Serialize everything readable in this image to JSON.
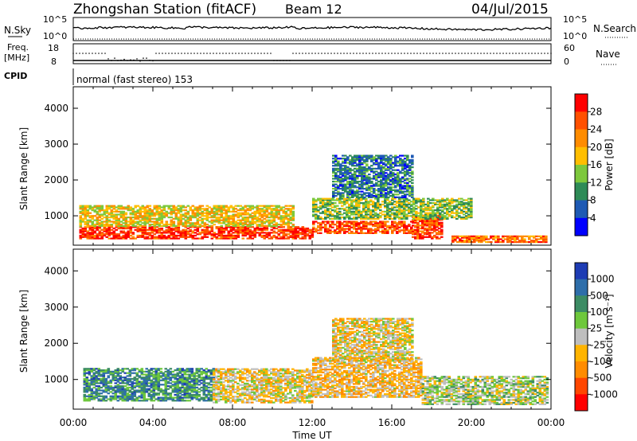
{
  "header": {
    "station": "Zhongshan Station (fitACF)",
    "beam": "Beam 12",
    "date": "04/Jul/2015"
  },
  "top_panels": {
    "nsky_label": "N.Sky",
    "nsearch_label": "N.Search",
    "nsky_ticks": [
      "10^5",
      "10^0"
    ],
    "nsearch_ticks": [
      "10^5",
      "10^0"
    ],
    "freq_label_1": "Freq.",
    "freq_label_2": "[MHz]",
    "freq_ticks": [
      "18",
      "8"
    ],
    "nave_label": "Nave",
    "nave_ticks": [
      "60",
      "0"
    ],
    "cpid_label": "CPID",
    "cpid_text": "normal (fast stereo) 153"
  },
  "axes": {
    "xlabel": "Time UT",
    "x_ticks": [
      "00:00",
      "04:00",
      "08:00",
      "12:00",
      "16:00",
      "20:00",
      "00:00"
    ],
    "ylabel": "Slant Range [km]",
    "y_ticks": [
      "4000",
      "3000",
      "2000",
      "1000"
    ]
  },
  "power_scale": {
    "label": "Power [dB]",
    "ticks": [
      "28",
      "24",
      "20",
      "16",
      "12",
      "8",
      "4"
    ],
    "colors": [
      "#ff0000",
      "#ff5000",
      "#ff8c00",
      "#ffbe00",
      "#7dc83c",
      "#2e8b57",
      "#1e5ab4",
      "#0000ff"
    ]
  },
  "velocity_scale": {
    "label": "Velocity [m s⁻¹]",
    "ticks": [
      "1000",
      "500",
      "100",
      "25",
      "-25",
      "-100",
      "-500",
      "-1000"
    ],
    "colors": [
      "#1e3cb4",
      "#2e6eaa",
      "#3c8c64",
      "#6ec83c",
      "#bebebe",
      "#ffb400",
      "#ff8c00",
      "#ff4600",
      "#ff0000"
    ]
  },
  "chart_data": {
    "type": "heatmap",
    "title": "Zhongshan Station (fitACF) Beam 12",
    "xlabel": "Time UT",
    "ylabel": "Slant Range [km]",
    "x_range_hours": [
      0,
      24
    ],
    "y_range_km": [
      180,
      4600
    ],
    "panels": [
      {
        "name": "Power [dB]",
        "scale": [
          0,
          32
        ],
        "regions": [
          {
            "t": [
              0.3,
              12.0
            ],
            "r": [
              350,
              700
            ],
            "value": 28
          },
          {
            "t": [
              12.0,
              17.0
            ],
            "r": [
              500,
              850
            ],
            "value": 26
          },
          {
            "t": [
              17.0,
              18.5
            ],
            "r": [
              350,
              1000
            ],
            "value": 27
          },
          {
            "t": [
              19.0,
              23.8
            ],
            "r": [
              250,
              450
            ],
            "value": 24
          },
          {
            "t": [
              0.3,
              11.0
            ],
            "r": [
              700,
              1300
            ],
            "value": 18
          },
          {
            "t": [
              12.0,
              20.0
            ],
            "r": [
              900,
              1500
            ],
            "value": 14
          },
          {
            "t": [
              13.0,
              17.0
            ],
            "r": [
              1500,
              2700
            ],
            "value": 8
          }
        ]
      },
      {
        "name": "Velocity [m s⁻¹]",
        "scale": [
          -1000,
          1000
        ],
        "regions": [
          {
            "t": [
              0.5,
              7.0
            ],
            "r": [
              400,
              1300
            ],
            "value": 500
          },
          {
            "t": [
              7.0,
              12.0
            ],
            "r": [
              350,
              1300
            ],
            "value": -100
          },
          {
            "t": [
              12.0,
              17.5
            ],
            "r": [
              500,
              1600
            ],
            "value": -200
          },
          {
            "t": [
              17.5,
              23.8
            ],
            "r": [
              300,
              1100
            ],
            "value": 100
          },
          {
            "t": [
              13.0,
              17.0
            ],
            "r": [
              1500,
              2700
            ],
            "value": -100
          }
        ]
      }
    ]
  }
}
